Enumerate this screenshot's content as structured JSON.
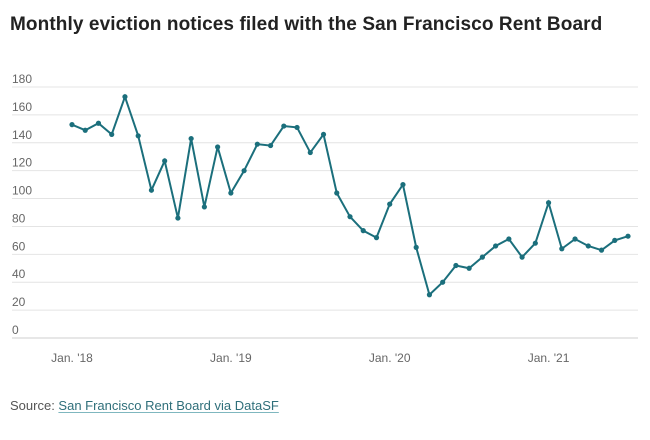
{
  "title": "Monthly eviction notices filed with the San Francisco Rent Board",
  "source": {
    "prefix": "Source: ",
    "link_text": "San Francisco Rent Board via DataSF"
  },
  "chart_data": {
    "type": "line",
    "title": "Monthly eviction notices filed with the San Francisco Rent Board",
    "xlabel": "",
    "ylabel": "",
    "ylim": [
      0,
      180
    ],
    "yticks": [
      0,
      20,
      40,
      60,
      80,
      100,
      120,
      140,
      160,
      180
    ],
    "grid": true,
    "line_color": "#1b6f7c",
    "xtick_labels": [
      {
        "label": "Jan. '18",
        "x": "2018-01"
      },
      {
        "label": "Jan. '19",
        "x": "2019-01"
      },
      {
        "label": "Jan. '20",
        "x": "2020-01"
      },
      {
        "label": "Jan. '21",
        "x": "2021-01"
      }
    ],
    "x": [
      "2018-01",
      "2018-02",
      "2018-03",
      "2018-04",
      "2018-05",
      "2018-06",
      "2018-07",
      "2018-08",
      "2018-09",
      "2018-10",
      "2018-11",
      "2018-12",
      "2019-01",
      "2019-02",
      "2019-03",
      "2019-04",
      "2019-05",
      "2019-06",
      "2019-07",
      "2019-08",
      "2019-09",
      "2019-10",
      "2019-11",
      "2019-12",
      "2020-01",
      "2020-02",
      "2020-03",
      "2020-04",
      "2020-05",
      "2020-06",
      "2020-07",
      "2020-08",
      "2020-09",
      "2020-10",
      "2020-11",
      "2020-12",
      "2021-01",
      "2021-02",
      "2021-03",
      "2021-04",
      "2021-05",
      "2021-06",
      "2021-07"
    ],
    "series": [
      {
        "values": [
          153,
          149,
          154,
          146,
          173,
          145,
          106,
          127,
          86,
          143,
          94,
          137,
          104,
          120,
          139,
          138,
          152,
          151,
          133,
          146,
          104,
          87,
          77,
          72,
          96,
          110,
          65,
          31,
          40,
          52,
          50,
          58,
          66,
          71,
          58,
          68,
          97,
          64,
          71,
          66,
          63,
          70,
          73
        ]
      }
    ]
  }
}
